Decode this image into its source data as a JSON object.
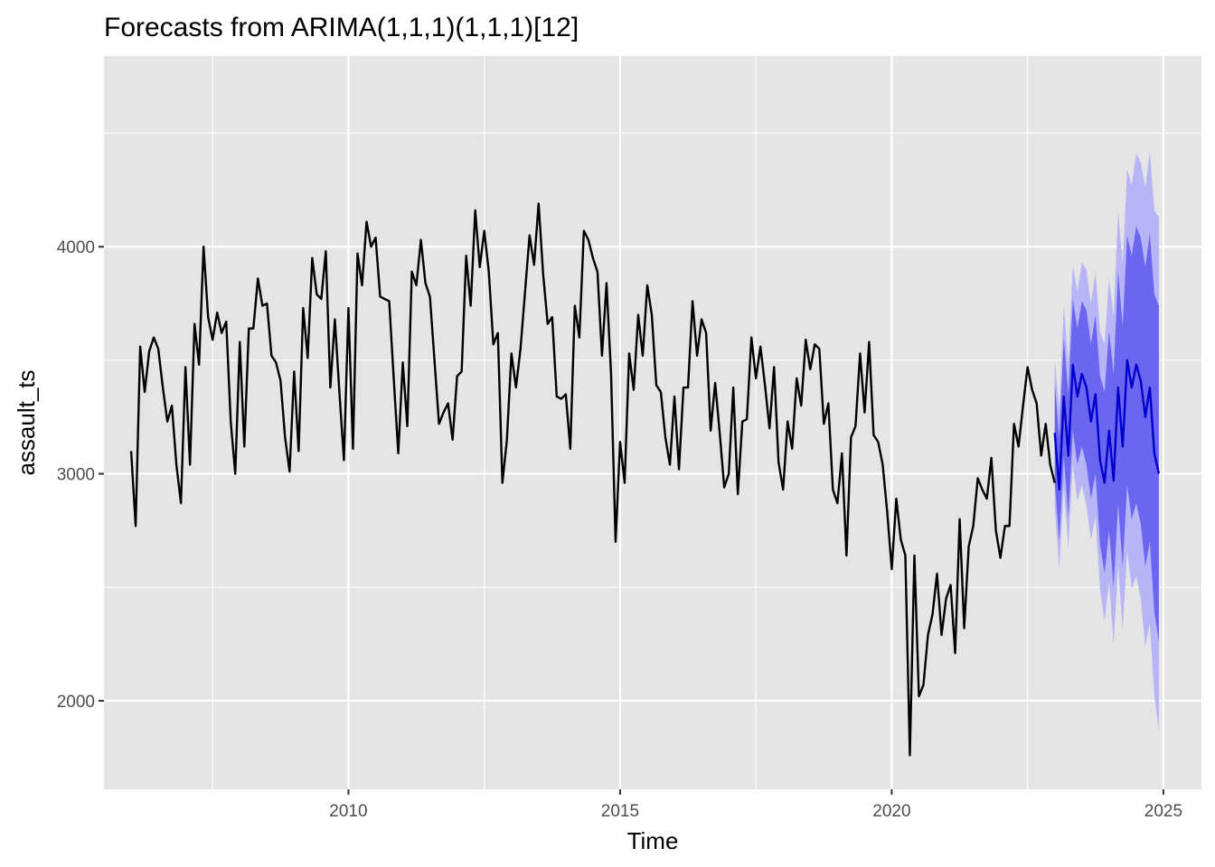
{
  "chart_data": {
    "type": "line",
    "title": "Forecasts from ARIMA(1,1,1)(1,1,1)[12]",
    "xlabel": "Time",
    "ylabel": "assault_ts",
    "xlim": [
      2005.5,
      2025.7
    ],
    "ylim": [
      1610,
      4840
    ],
    "x_ticks": [
      2010,
      2015,
      2020,
      2025
    ],
    "y_ticks": [
      2000,
      3000,
      4000
    ],
    "grid": true,
    "background": "#e5e5e5",
    "colors": {
      "history": "#000000",
      "forecast": "#0000cc",
      "band80": "#6b66ef",
      "band95": "#b8b5f7"
    },
    "history": {
      "start": 2006.0,
      "step": 0.08333333,
      "values": [
        3100,
        2770,
        3560,
        3360,
        3540,
        3600,
        3550,
        3380,
        3230,
        3300,
        3040,
        2870,
        3470,
        3040,
        3660,
        3480,
        4000,
        3690,
        3590,
        3710,
        3620,
        3670,
        3230,
        3000,
        3580,
        3120,
        3640,
        3640,
        3860,
        3740,
        3750,
        3520,
        3490,
        3410,
        3160,
        3010,
        3450,
        3100,
        3730,
        3510,
        3950,
        3790,
        3770,
        3980,
        3380,
        3680,
        3360,
        3060,
        3730,
        3110,
        3970,
        3830,
        4110,
        4000,
        4040,
        3780,
        3770,
        3760,
        3420,
        3090,
        3490,
        3210,
        3890,
        3830,
        4030,
        3840,
        3780,
        3500,
        3220,
        3270,
        3310,
        3150,
        3430,
        3450,
        3960,
        3740,
        4160,
        3910,
        4070,
        3890,
        3570,
        3620,
        2960,
        3150,
        3530,
        3380,
        3550,
        3800,
        4050,
        3920,
        4190,
        3880,
        3660,
        3690,
        3340,
        3330,
        3350,
        3110,
        3740,
        3600,
        4070,
        4030,
        3950,
        3890,
        3520,
        3840,
        3440,
        2700,
        3140,
        2960,
        3530,
        3370,
        3700,
        3520,
        3830,
        3700,
        3390,
        3360,
        3160,
        3040,
        3340,
        3020,
        3380,
        3380,
        3760,
        3520,
        3680,
        3620,
        3190,
        3400,
        3180,
        2940,
        3000,
        3380,
        2910,
        3230,
        3240,
        3600,
        3420,
        3560,
        3390,
        3200,
        3470,
        3050,
        2930,
        3230,
        3110,
        3420,
        3300,
        3590,
        3460,
        3570,
        3550,
        3220,
        3310,
        2930,
        2870,
        3090,
        2640,
        3160,
        3210,
        3530,
        3270,
        3580,
        3170,
        3140,
        3040,
        2830,
        2580,
        2890,
        2710,
        2640,
        1760,
        2640,
        2020,
        2070,
        2290,
        2380,
        2560,
        2290,
        2450,
        2510,
        2210,
        2800,
        2320,
        2680,
        2770,
        2980,
        2930,
        2890,
        3070,
        2750,
        2630,
        2770,
        2770,
        3220,
        3120,
        3300,
        3470,
        3370,
        3310,
        3080,
        3220,
        3040,
        2960
      ]
    },
    "forecast": {
      "start": 2023.0,
      "step": 0.08333333,
      "mean": [
        3180,
        2930,
        3340,
        3080,
        3480,
        3340,
        3440,
        3380,
        3230,
        3350,
        3060,
        2960,
        3190,
        2970,
        3380,
        3120,
        3500,
        3380,
        3480,
        3410,
        3250,
        3380,
        3090,
        3000
      ],
      "lo80": [
        2960,
        2700,
        3080,
        2810,
        3190,
        3040,
        3120,
        3040,
        2890,
        3000,
        2690,
        2560,
        2750,
        2500,
        2870,
        2590,
        2950,
        2800,
        2870,
        2780,
        2590,
        2700,
        2390,
        2260
      ],
      "hi80": [
        3400,
        3160,
        3600,
        3350,
        3770,
        3640,
        3760,
        3720,
        3570,
        3700,
        3430,
        3360,
        3630,
        3440,
        3890,
        3650,
        4050,
        3960,
        4090,
        4040,
        3910,
        4060,
        3790,
        3740
      ],
      "lo95": [
        2850,
        2580,
        2940,
        2670,
        3040,
        2880,
        2950,
        2860,
        2710,
        2810,
        2490,
        2350,
        2520,
        2250,
        2600,
        2310,
        2660,
        2490,
        2550,
        2450,
        2240,
        2340,
        2020,
        1870
      ],
      "hi95": [
        3510,
        3280,
        3740,
        3490,
        3920,
        3800,
        3930,
        3900,
        3750,
        3890,
        3630,
        3570,
        3860,
        3690,
        4160,
        3930,
        4340,
        4270,
        4410,
        4370,
        4260,
        4420,
        4160,
        4130
      ]
    }
  }
}
